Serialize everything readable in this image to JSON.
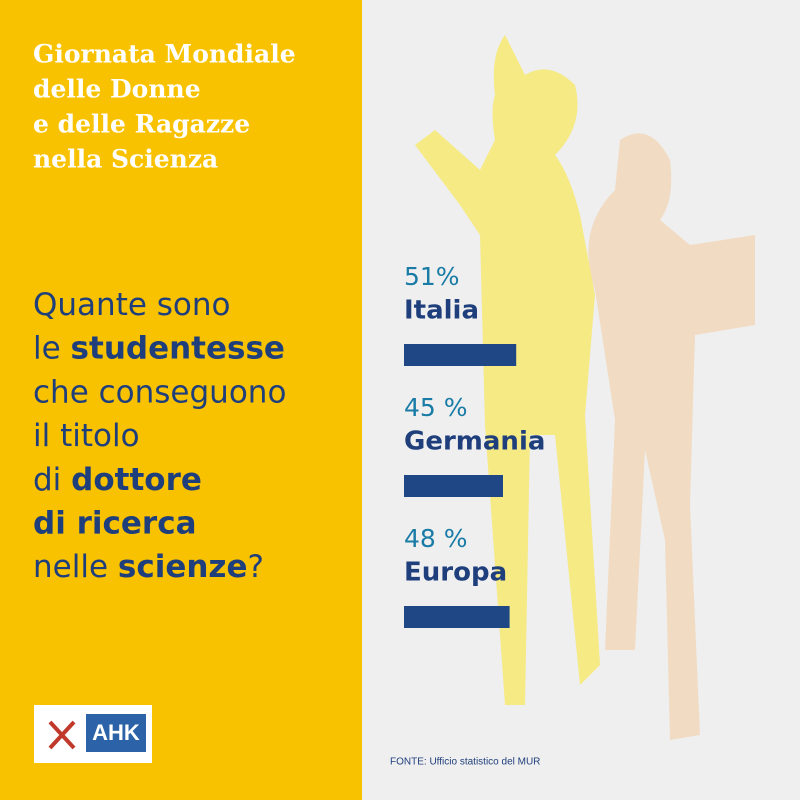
{
  "title_lines": [
    "Giornata Mondiale",
    "delle Donne",
    "e delle Ragazze",
    "nella Scienza"
  ],
  "question_lines": [
    [
      {
        "text": "Quante sono",
        "bold": false
      }
    ],
    [
      {
        "text": "le ",
        "bold": false
      },
      {
        "text": "studentesse",
        "bold": true
      }
    ],
    [
      {
        "text": "che conseguono",
        "bold": false
      }
    ],
    [
      {
        "text": "il titolo",
        "bold": false
      }
    ],
    [
      {
        "text": "di ",
        "bold": false
      },
      {
        "text": "dottore",
        "bold": true
      }
    ],
    [
      {
        "text": "di ricerca",
        "bold": true
      }
    ],
    [
      {
        "text": "nelle ",
        "bold": false
      },
      {
        "text": "scienze",
        "bold": true
      },
      {
        "text": "?",
        "bold": false
      }
    ]
  ],
  "items": [
    {
      "value": 51,
      "value_label": "51%",
      "name": "Italia"
    },
    {
      "value": 45,
      "value_label": "45 %",
      "name": "Germania"
    },
    {
      "value": 48,
      "value_label": "48 %",
      "name": "Europa"
    }
  ],
  "bar_color": "#1f4785",
  "logo": {
    "text": "AHK"
  },
  "source": "FONTE: Ufficio statistico del MUR"
}
